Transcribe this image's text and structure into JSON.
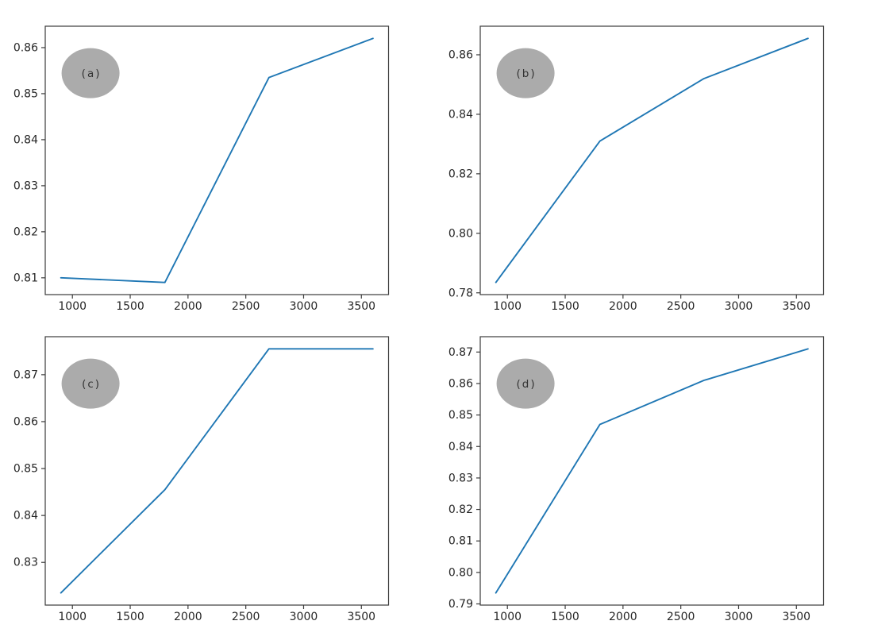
{
  "figure": {
    "background": "#ffffff",
    "line_color": "#1f77b4",
    "spine_color": "#3b3b3b",
    "tick_color": "#3b3b3b",
    "tick_label_color": "#262626",
    "annotation_fill": "#ababab",
    "annotation_text_color": "#333333"
  },
  "chart_data": [
    {
      "type": "line",
      "panel": "a",
      "annotation": "(a)",
      "x": [
        900,
        1800,
        2700,
        3600
      ],
      "y": [
        0.81,
        0.809,
        0.8535,
        0.862
      ],
      "xlim": [
        765,
        3735
      ],
      "ylim": [
        0.80635,
        0.86465
      ],
      "xticks": [
        1000,
        1500,
        2000,
        2500,
        3000,
        3500
      ],
      "yticks": [
        0.81,
        0.82,
        0.83,
        0.84,
        0.85,
        0.86
      ],
      "ytick_decimals": 2,
      "grid": false,
      "legend": null
    },
    {
      "type": "line",
      "panel": "b",
      "annotation": "(b)",
      "x": [
        900,
        1800,
        2700,
        3600
      ],
      "y": [
        0.7835,
        0.831,
        0.852,
        0.8655
      ],
      "xlim": [
        765,
        3735
      ],
      "ylim": [
        0.7794,
        0.8696
      ],
      "xticks": [
        1000,
        1500,
        2000,
        2500,
        3000,
        3500
      ],
      "yticks": [
        0.78,
        0.8,
        0.82,
        0.84,
        0.86
      ],
      "ytick_decimals": 2,
      "grid": false,
      "legend": null
    },
    {
      "type": "line",
      "panel": "c",
      "annotation": "(c)",
      "x": [
        900,
        1800,
        2700,
        3600
      ],
      "y": [
        0.8235,
        0.8455,
        0.8755,
        0.8755
      ],
      "xlim": [
        765,
        3735
      ],
      "ylim": [
        0.8209,
        0.8781
      ],
      "xticks": [
        1000,
        1500,
        2000,
        2500,
        3000,
        3500
      ],
      "yticks": [
        0.83,
        0.84,
        0.85,
        0.86,
        0.87
      ],
      "ytick_decimals": 2,
      "grid": false,
      "legend": null
    },
    {
      "type": "line",
      "panel": "d",
      "annotation": "(d)",
      "x": [
        900,
        1800,
        2700,
        3600
      ],
      "y": [
        0.7935,
        0.847,
        0.861,
        0.871
      ],
      "xlim": [
        765,
        3735
      ],
      "ylim": [
        0.789625,
        0.874875
      ],
      "xticks": [
        1000,
        1500,
        2000,
        2500,
        3000,
        3500
      ],
      "yticks": [
        0.79,
        0.8,
        0.81,
        0.82,
        0.83,
        0.84,
        0.85,
        0.86,
        0.87
      ],
      "ytick_decimals": 2,
      "grid": false,
      "legend": null
    }
  ]
}
